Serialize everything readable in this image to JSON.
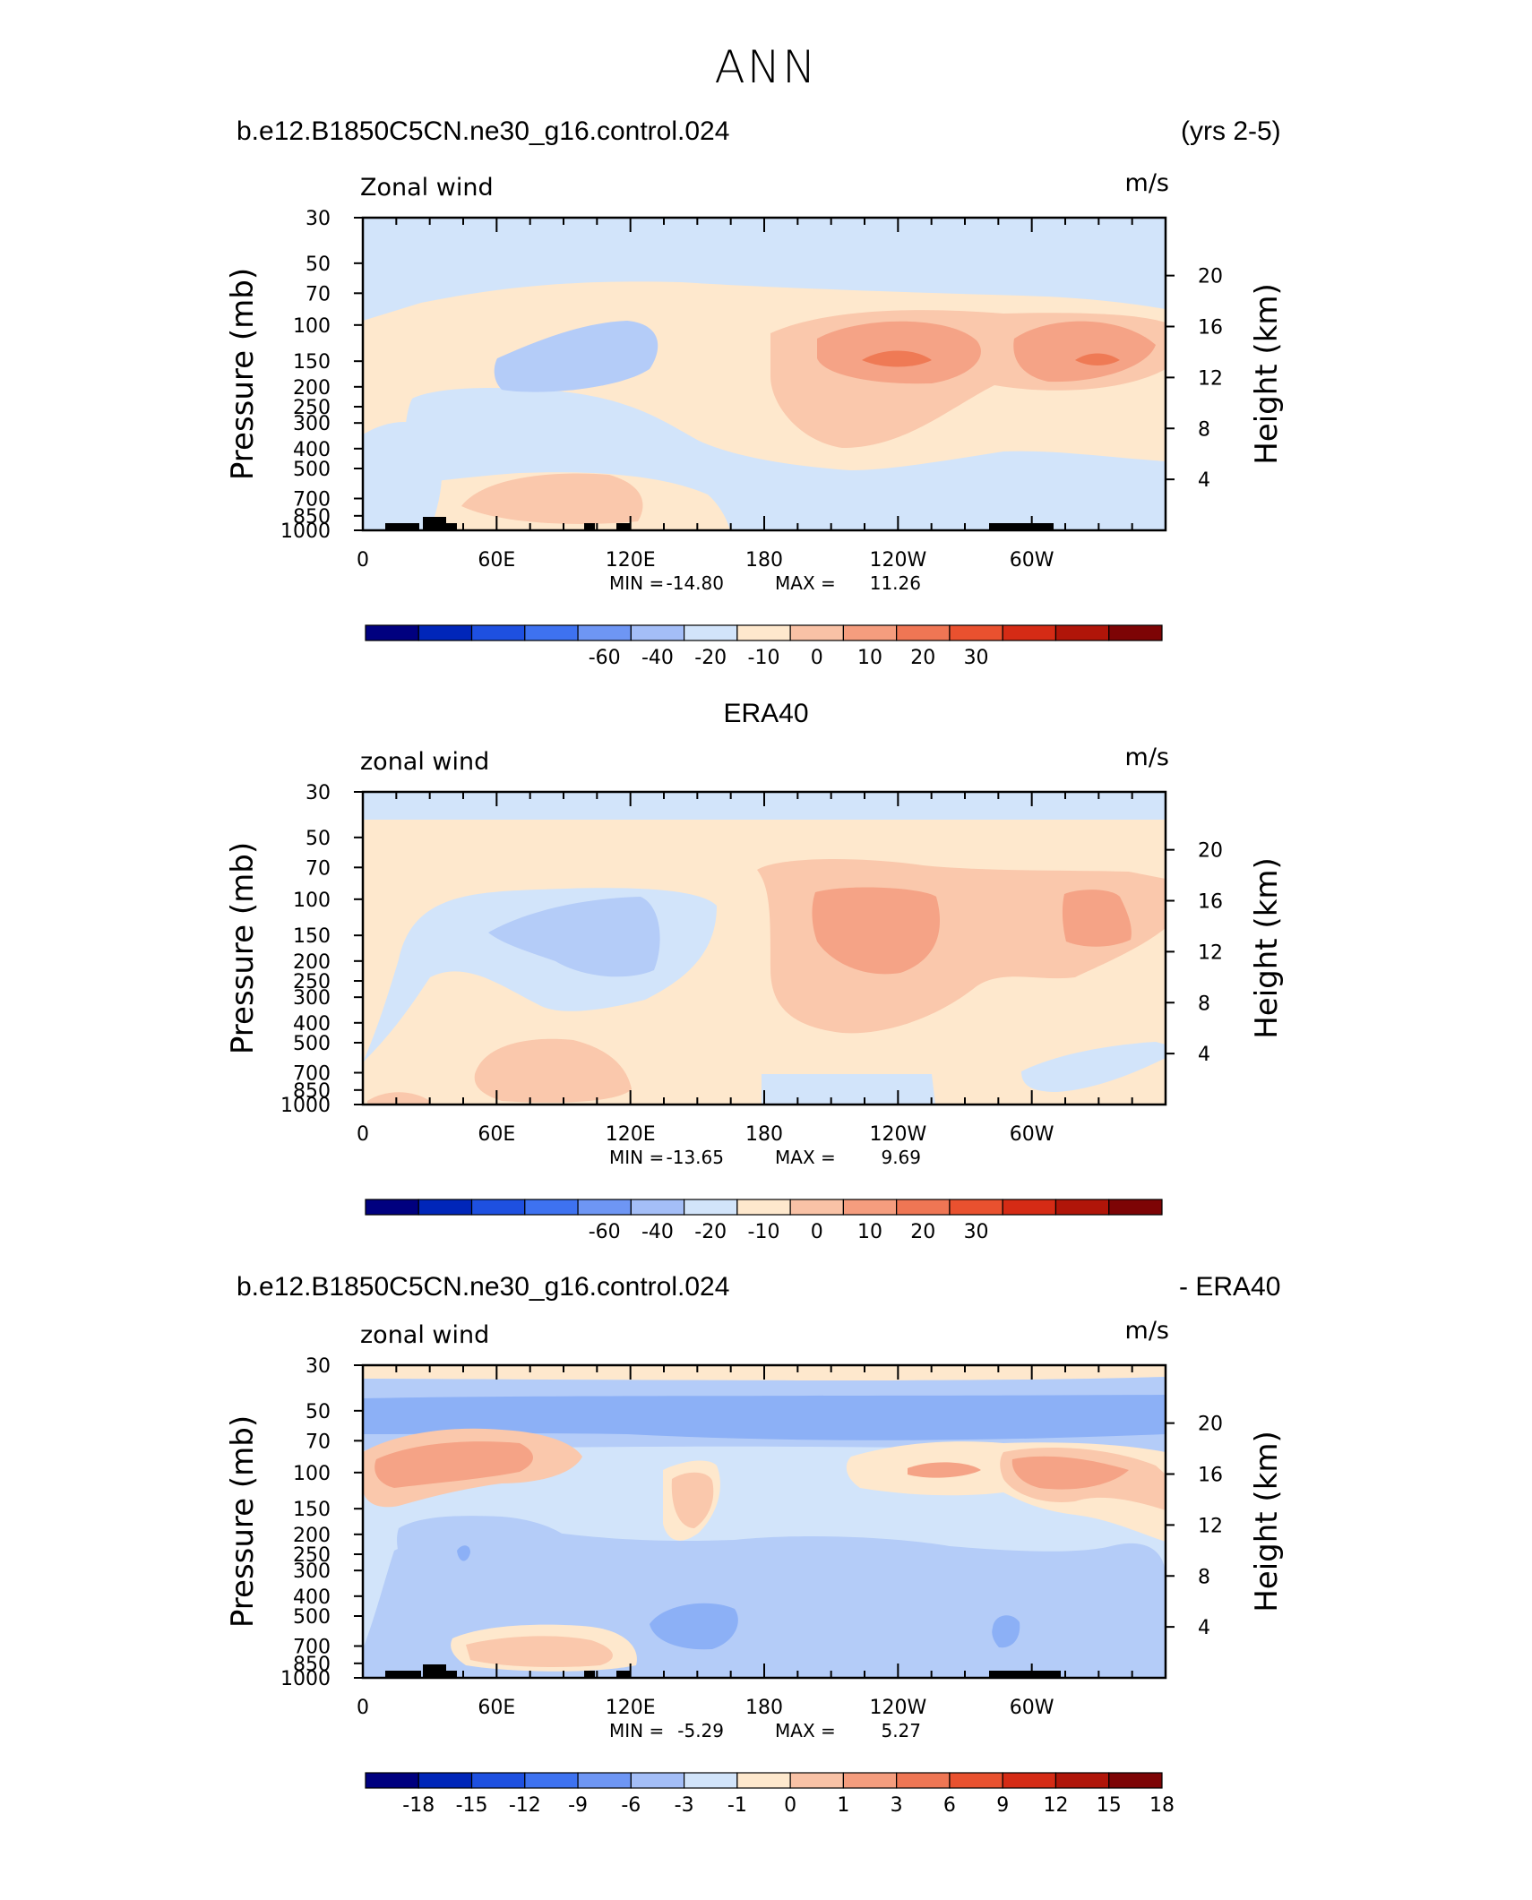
{
  "page": {
    "title": "ANN",
    "header1_left": "b.e12.B1850C5CN.ne30_g16.control.024",
    "header1_right": "(yrs 2-5)",
    "header2_center": "ERA40",
    "header3_left": "b.e12.B1850C5CN.ne30_g16.control.024",
    "header3_right": "- ERA40"
  },
  "chart_data": [
    {
      "type": "heatmap",
      "title": "b.e12.B1850C5CN.ne30_g16.control.024 (yrs 2-5)",
      "left_label": "Zonal wind",
      "units": "m/s",
      "ylabel": "Pressure (mb)",
      "ylabel_right": "Height (km)",
      "ylim": [
        1000,
        30
      ],
      "xlim": [
        0,
        360
      ],
      "pressure_ticks": [
        "30",
        "50",
        "70",
        "100",
        "150",
        "200",
        "250",
        "300",
        "400",
        "500",
        "700",
        "850",
        "1000"
      ],
      "height_ticks": [
        "20",
        "16",
        "12",
        "8",
        "4"
      ],
      "lon_ticks": [
        "0",
        "60E",
        "120E",
        "180",
        "120W",
        "60W"
      ],
      "min_label": "MIN =",
      "min_value": "-14.80",
      "max_label": "MAX =",
      "max_value": "11.26",
      "colorbar_labels": [
        "-60",
        "-40",
        "-20",
        "-10",
        "0",
        "10",
        "20",
        "30"
      ]
    },
    {
      "type": "heatmap",
      "title": "ERA40",
      "left_label": "zonal wind",
      "units": "m/s",
      "ylabel": "Pressure (mb)",
      "ylabel_right": "Height (km)",
      "ylim": [
        1000,
        30
      ],
      "xlim": [
        0,
        360
      ],
      "pressure_ticks": [
        "30",
        "50",
        "70",
        "100",
        "150",
        "200",
        "250",
        "300",
        "400",
        "500",
        "700",
        "850",
        "1000"
      ],
      "height_ticks": [
        "20",
        "16",
        "12",
        "8",
        "4"
      ],
      "lon_ticks": [
        "0",
        "60E",
        "120E",
        "180",
        "120W",
        "60W"
      ],
      "min_label": "MIN =",
      "min_value": "-13.65",
      "max_label": "MAX =",
      "max_value": "9.69",
      "colorbar_labels": [
        "-60",
        "-40",
        "-20",
        "-10",
        "0",
        "10",
        "20",
        "30"
      ]
    },
    {
      "type": "heatmap",
      "title": "b.e12.B1850C5CN.ne30_g16.control.024 - ERA40",
      "left_label": "zonal wind",
      "units": "m/s",
      "ylabel": "Pressure (mb)",
      "ylabel_right": "Height (km)",
      "ylim": [
        1000,
        30
      ],
      "xlim": [
        0,
        360
      ],
      "pressure_ticks": [
        "30",
        "50",
        "70",
        "100",
        "150",
        "200",
        "250",
        "300",
        "400",
        "500",
        "700",
        "850",
        "1000"
      ],
      "height_ticks": [
        "20",
        "16",
        "12",
        "8",
        "4"
      ],
      "lon_ticks": [
        "0",
        "60E",
        "120E",
        "180",
        "120W",
        "60W"
      ],
      "min_label": "MIN =",
      "min_value": "-5.29",
      "max_label": "MAX =",
      "max_value": "5.27",
      "colorbar_labels": [
        "-18",
        "-15",
        "-12",
        "-9",
        "-6",
        "-3",
        "-1",
        "0",
        "1",
        "3",
        "6",
        "9",
        "12",
        "15",
        "18"
      ]
    }
  ],
  "colors": {
    "colorbar": [
      "#00007f",
      "#0026b9",
      "#1e50e0",
      "#3e72f0",
      "#6e96f4",
      "#a4bef7",
      "#d2e4fa",
      "#fee8cd",
      "#f9c2a6",
      "#f59d7e",
      "#ef7654",
      "#e9512f",
      "#d52b15",
      "#b01509",
      "#7d0405"
    ],
    "neg1": "#d2e4fa",
    "neg2": "#b4ccf8",
    "neg3": "#8cb0f6",
    "pos1": "#fee8cd",
    "pos2": "#fac8ac",
    "pos3": "#f5a386",
    "pos4": "#ef7a55",
    "topo": "#000000"
  }
}
